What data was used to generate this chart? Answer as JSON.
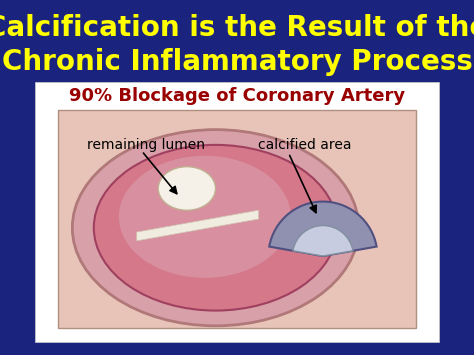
{
  "bg_color": "#1a237e",
  "title_line1": "Calcification is the Result of the",
  "title_line2": "Chronic Inflammatory Process",
  "title_color": "#ffff00",
  "title_fontsize": 20,
  "title_bold": true,
  "slide_title": "90% Blockage of Coronary Artery",
  "slide_title_color": "#990000",
  "slide_title_fontsize": 13,
  "label_lumen": "remaining lumen",
  "label_calcified": "calcified area",
  "label_color": "#000000",
  "label_fontsize": 10,
  "white_box_color": "#ffffff",
  "image_bg_color": "#e8c4b8",
  "artery_color": "#d4788a",
  "artery_edge": "#a04060",
  "lumen_color": "#f5f0e8",
  "calcified_color": "#9090b0",
  "calcified_edge": "#505080",
  "streak_color": "#f0ece0",
  "arrow_color": "#000000"
}
